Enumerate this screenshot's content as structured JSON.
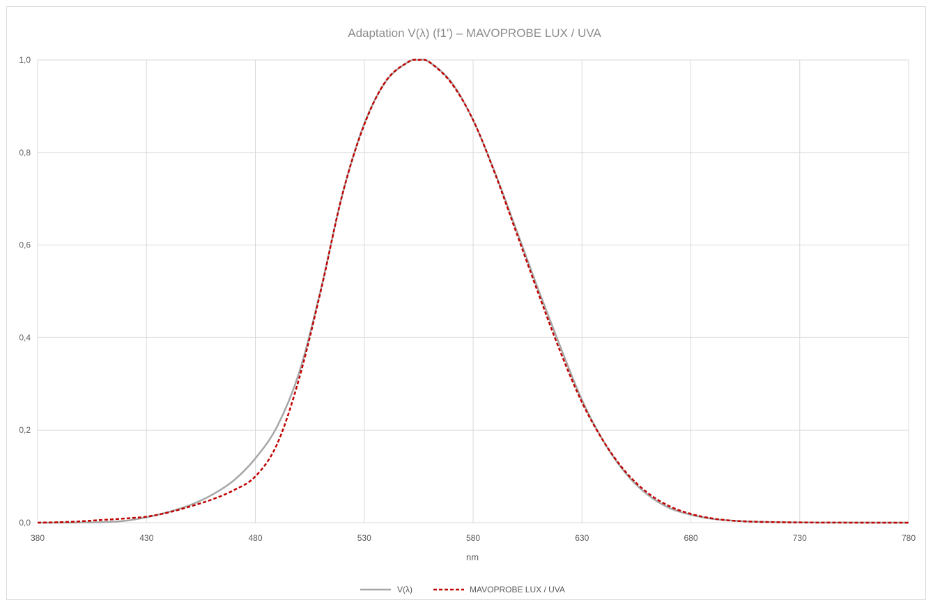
{
  "chart_data": {
    "type": "line",
    "title": "Adaptation V(λ) (f1') – MAVOPROBE LUX / UVA",
    "xlabel": "nm",
    "ylabel": "",
    "xlim": [
      380,
      780
    ],
    "ylim": [
      0,
      1.0
    ],
    "x_ticks": [
      "380",
      "430",
      "480",
      "530",
      "580",
      "630",
      "680",
      "730",
      "780"
    ],
    "y_ticks": [
      "0,0",
      "0,2",
      "0,4",
      "0,6",
      "0,8",
      "1,0"
    ],
    "grid": true,
    "legend_position": "bottom",
    "series": [
      {
        "name": "V(λ)",
        "color": "#a6a6a6",
        "style": "solid",
        "x": [
          380,
          390,
          400,
          410,
          420,
          430,
          440,
          450,
          460,
          470,
          480,
          490,
          500,
          510,
          520,
          530,
          540,
          550,
          555,
          560,
          570,
          580,
          590,
          600,
          610,
          620,
          630,
          640,
          650,
          660,
          670,
          680,
          690,
          700,
          710,
          720,
          730,
          740,
          750,
          760,
          770,
          780
        ],
        "y": [
          0.0,
          0.0001,
          0.0004,
          0.0012,
          0.004,
          0.0116,
          0.023,
          0.038,
          0.06,
          0.091,
          0.139,
          0.208,
          0.323,
          0.503,
          0.71,
          0.862,
          0.954,
          0.995,
          1.0,
          0.995,
          0.952,
          0.87,
          0.757,
          0.631,
          0.503,
          0.381,
          0.265,
          0.175,
          0.107,
          0.061,
          0.032,
          0.017,
          0.0082,
          0.0041,
          0.0021,
          0.001,
          0.0005,
          0.0002,
          0.0001,
          0.0001,
          0.0,
          0.0
        ]
      },
      {
        "name": "MAVOPROBE LUX / UVA",
        "color": "#c00000",
        "style": "dashed",
        "x": [
          380,
          390,
          400,
          410,
          420,
          430,
          440,
          450,
          460,
          470,
          480,
          490,
          500,
          510,
          520,
          530,
          540,
          550,
          555,
          560,
          570,
          580,
          590,
          600,
          610,
          620,
          630,
          640,
          650,
          660,
          670,
          680,
          690,
          700,
          710,
          720,
          730,
          740,
          750,
          760,
          770,
          780
        ],
        "y": [
          0.0,
          0.001,
          0.003,
          0.006,
          0.009,
          0.013,
          0.022,
          0.035,
          0.05,
          0.07,
          0.1,
          0.17,
          0.31,
          0.5,
          0.71,
          0.86,
          0.955,
          0.995,
          1.0,
          0.995,
          0.95,
          0.87,
          0.755,
          0.625,
          0.495,
          0.37,
          0.26,
          0.175,
          0.11,
          0.065,
          0.036,
          0.019,
          0.009,
          0.004,
          0.002,
          0.001,
          0.0005,
          0.0002,
          0.0001,
          0.0,
          0.0,
          0.0
        ]
      }
    ]
  }
}
